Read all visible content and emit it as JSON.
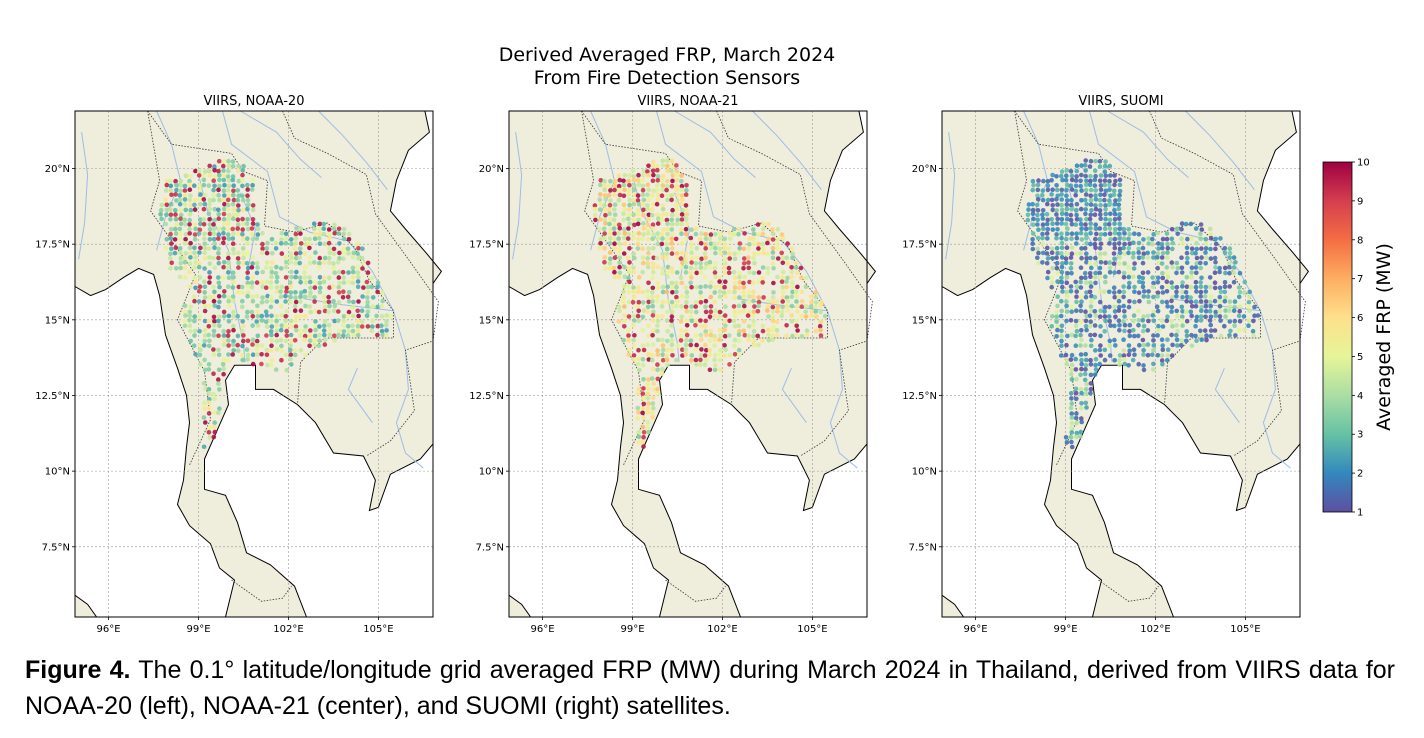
{
  "figure": {
    "suptitle_line1": "Derived Averaged FRP, March 2024",
    "suptitle_line2": "From Fire Detection Sensors",
    "caption_label": "Figure 4.",
    "caption_text": " The 0.1° latitude/longitude grid averaged FRP (MW) during March 2024 in Thailand, derived from VIIRS data for NOAA-20 (left), NOAA-21 (center), and SUOMI (right) satellites."
  },
  "colors": {
    "land": "#efeddc",
    "ocean": "#ffffff",
    "river": "#9dbde6",
    "coast": "#000000",
    "colormap": [
      "#5e4fa2",
      "#3288bd",
      "#66c2a5",
      "#abdda4",
      "#e6f598",
      "#fee08b",
      "#fdae61",
      "#f46d43",
      "#d53e4f",
      "#9e0142"
    ]
  },
  "chart_data": {
    "type": "heatmap",
    "ylabel": "",
    "xlabel": "",
    "x_ticks": [
      "96°E",
      "99°E",
      "102°E",
      "105°E"
    ],
    "y_ticks": [
      "20°N",
      "17.5°N",
      "15°N",
      "12.5°N",
      "10°N",
      "7.5°N"
    ],
    "grid": true,
    "colorbar": {
      "label": "Averaged FRP (MW)",
      "range": [
        1,
        10
      ],
      "ticks": [
        "1",
        "2",
        "3",
        "4",
        "5",
        "6",
        "7",
        "8",
        "9",
        "10"
      ]
    },
    "panels": [
      {
        "title": "VIIRS, NOAA-20",
        "dominant_levels": [
          3,
          4,
          5,
          9
        ]
      },
      {
        "title": "VIIRS, NOAA-21",
        "dominant_levels": [
          4,
          5,
          6,
          9
        ]
      },
      {
        "title": "VIIRS, SUOMI",
        "dominant_levels": [
          1,
          2,
          3,
          4
        ]
      }
    ]
  }
}
